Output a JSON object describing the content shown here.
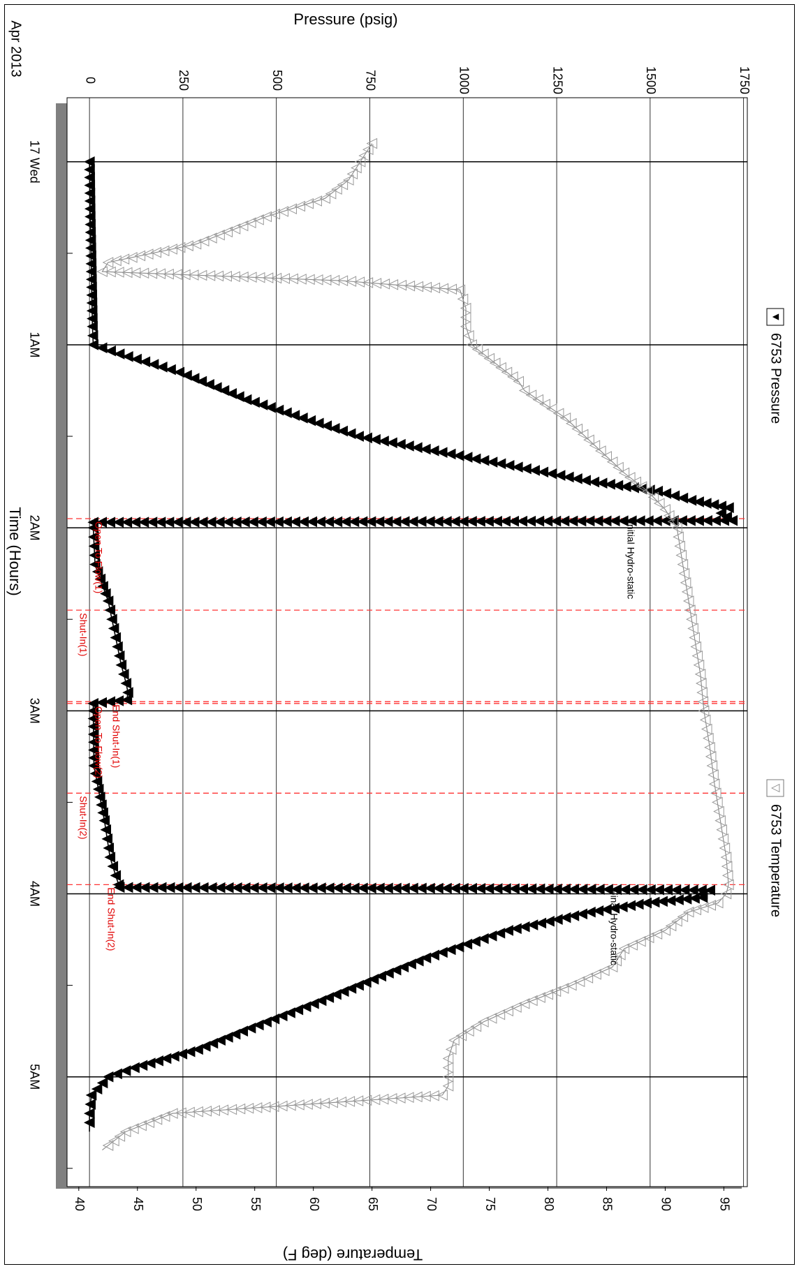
{
  "chart_data": {
    "type": "line",
    "date_label": "Apr 2013",
    "xlabel": "Time (Hours)",
    "ylabel_left": "Pressure (psig)",
    "ylabel_right": "Temperature (deg F)",
    "x_ticks": [
      "17 Wed",
      "1AM",
      "2AM",
      "3AM",
      "4AM",
      "5AM"
    ],
    "pressure_ticks": [
      0,
      250,
      500,
      750,
      1000,
      1250,
      1500,
      1750
    ],
    "temperature_ticks": [
      40,
      45,
      50,
      55,
      60,
      65,
      70,
      75,
      80,
      85,
      90,
      95
    ],
    "pressure_range": [
      -60,
      1760
    ],
    "temperature_range": [
      39,
      97
    ],
    "time_range_hours": [
      -0.35,
      5.6
    ],
    "grid": true,
    "series": [
      {
        "name": "6753 Pressure",
        "marker": "filled-triangle",
        "color": "#000000",
        "x": [
          0.0,
          0.3,
          0.6,
          0.9,
          1.0,
          1.05,
          1.15,
          1.3,
          1.5,
          1.65,
          1.75,
          1.8,
          1.85,
          1.89,
          1.92,
          1.96,
          1.965,
          1.97,
          2.0,
          2.2,
          2.4,
          2.6,
          2.75,
          2.85,
          2.9,
          2.94,
          2.96,
          3.0,
          3.3,
          3.6,
          3.8,
          3.9,
          3.95,
          3.965,
          3.97,
          3.98,
          4.0,
          4.02,
          4.05,
          4.1,
          4.2,
          4.35,
          4.5,
          4.6,
          4.75,
          4.85,
          4.95,
          5.0,
          5.1,
          5.2,
          5.3
        ],
        "y": [
          0,
          2,
          5,
          8,
          10,
          80,
          240,
          420,
          720,
          1100,
          1350,
          1520,
          1610,
          1710,
          1690,
          1720,
          1000,
          10,
          10,
          15,
          50,
          70,
          85,
          98,
          103,
          100,
          10,
          10,
          12,
          40,
          55,
          70,
          78,
          80,
          1000,
          1660,
          1640,
          1640,
          1490,
          1340,
          1120,
          900,
          720,
          600,
          410,
          290,
          120,
          50,
          5,
          0,
          0
        ]
      },
      {
        "name": "6753 Temperature",
        "marker": "open-triangle",
        "color": "#808080",
        "x": [
          -0.1,
          0.0,
          0.1,
          0.2,
          0.3,
          0.45,
          0.55,
          0.6,
          0.65,
          0.7,
          0.8,
          0.9,
          1.0,
          1.1,
          1.2,
          1.25,
          1.4,
          1.55,
          1.7,
          1.8,
          1.9,
          2.0,
          2.2,
          2.4,
          2.6,
          2.8,
          3.0,
          3.2,
          3.4,
          3.6,
          3.8,
          3.95,
          4.0,
          4.05,
          4.1,
          4.2,
          4.3,
          4.4,
          4.5,
          4.6,
          4.7,
          4.8,
          4.9,
          5.0,
          5.05,
          5.1,
          5.2,
          5.3,
          5.4
        ],
        "y": [
          65,
          64,
          63,
          61,
          56,
          50,
          42.5,
          42,
          62.5,
          72.5,
          73,
          73,
          73.5,
          75.5,
          77.5,
          78,
          81.5,
          84,
          86.5,
          88.5,
          90,
          91,
          91.5,
          92,
          92.5,
          93,
          93.3,
          93.8,
          94.2,
          94.7,
          95.2,
          95.4,
          95.2,
          94.5,
          92,
          90,
          86.5,
          85.5,
          82,
          78,
          74.5,
          72,
          71.5,
          71.5,
          71.5,
          71,
          48,
          44,
          42
        ]
      }
    ],
    "legend": [
      {
        "label": "6753 Pressure",
        "symbol": "▼",
        "placement": "top"
      },
      {
        "label": "6753 Temperature",
        "symbol": "▽",
        "placement": "bottom"
      }
    ],
    "event_lines": [
      {
        "time": 1.95,
        "label": "Initial Hydro-static",
        "color": "#000000"
      },
      {
        "time": 1.95,
        "label": "Open To Flow(1)",
        "color": "#e00000"
      },
      {
        "time": 2.45,
        "label": "Shut-In(1)",
        "color": "#e00000"
      },
      {
        "time": 2.95,
        "label": "End Shut-In(1)",
        "color": "#e00000"
      },
      {
        "time": 2.96,
        "label": "Open To Flow(2)",
        "color": "#e00000"
      },
      {
        "time": 3.45,
        "label": "Shut-In(2)",
        "color": "#e00000"
      },
      {
        "time": 3.95,
        "label": "End Shut-In(2)",
        "color": "#e00000"
      },
      {
        "time": 3.96,
        "label": "Final Hydro-static",
        "color": "#000000"
      }
    ]
  }
}
